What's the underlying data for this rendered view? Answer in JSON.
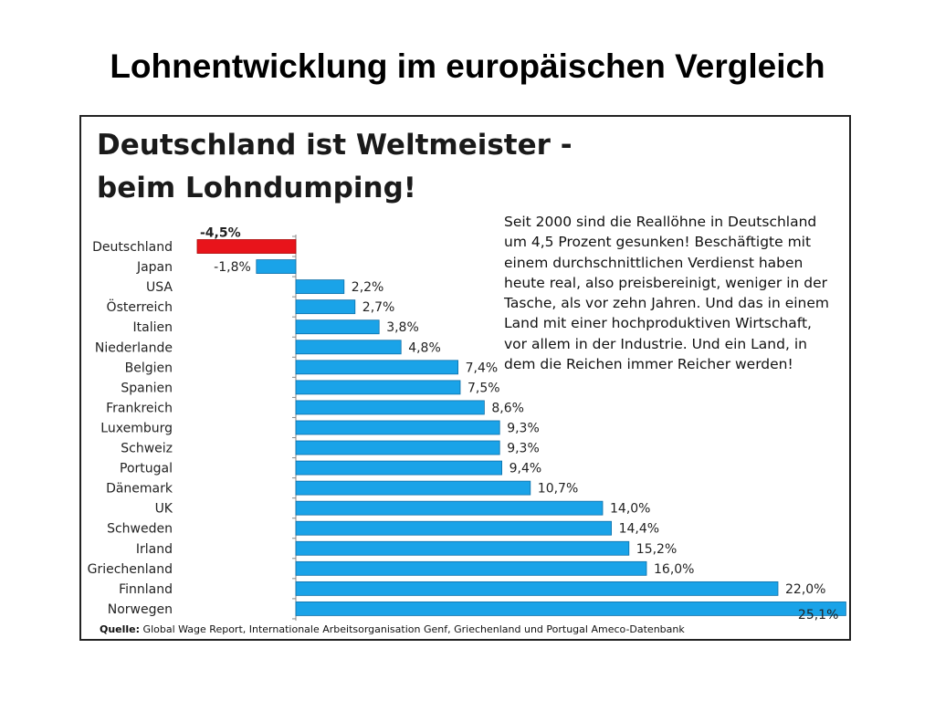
{
  "slide": {
    "title": "Lohnentwicklung im europäischen Vergleich"
  },
  "chart_data": {
    "type": "bar",
    "orientation": "horizontal",
    "title_lines": [
      "Deutschland ist Weltmeister -",
      "beim Lohndumping!"
    ],
    "categories": [
      "Deutschland",
      "Japan",
      "USA",
      "Österreich",
      "Italien",
      "Niederlande",
      "Belgien",
      "Spanien",
      "Frankreich",
      "Luxemburg",
      "Schweiz",
      "Portugal",
      "Dänemark",
      "UK",
      "Schweden",
      "Irland",
      "Griechenland",
      "Finnland",
      "Norwegen"
    ],
    "values": [
      -4.5,
      -1.8,
      2.2,
      2.7,
      3.8,
      4.8,
      7.4,
      7.5,
      8.6,
      9.3,
      9.3,
      9.4,
      10.7,
      14.0,
      14.4,
      15.2,
      16.0,
      22.0,
      25.1
    ],
    "value_labels": [
      "-4,5%",
      "-1,8%",
      "2,2%",
      "2,7%",
      "3,8%",
      "4,8%",
      "7,4%",
      "7,5%",
      "8,6%",
      "9,3%",
      "9,3%",
      "9,4%",
      "10,7%",
      "14,0%",
      "14,4%",
      "15,2%",
      "16,0%",
      "22,0%",
      "25,1%"
    ],
    "highlight_index": 0,
    "colors": {
      "bar": "#1aa3e8",
      "highlight": "#e8141b",
      "bar_border": "#0d6fa8"
    },
    "xlim": [
      -4.5,
      25.1
    ],
    "grid": false,
    "legend": "none",
    "annotation": "Seit 2000 sind die Reallöhne in Deutschland um 4,5 Prozent gesunken! Beschäftigte mit einem durchschnittlichen Verdienst haben heute real, also preisbereinigt, weniger in der Tasche, als vor zehn Jahren. Und das in einem Land mit einer hochproduktiven Wirtschaft, vor allem in der Industrie. Und ein Land, in dem die Reichen immer Reicher werden!",
    "source_label": "Quelle:",
    "source_text": "Global Wage Report, Internationale Arbeitsorganisation Genf, Griechenland und Portugal Ameco-Datenbank"
  }
}
